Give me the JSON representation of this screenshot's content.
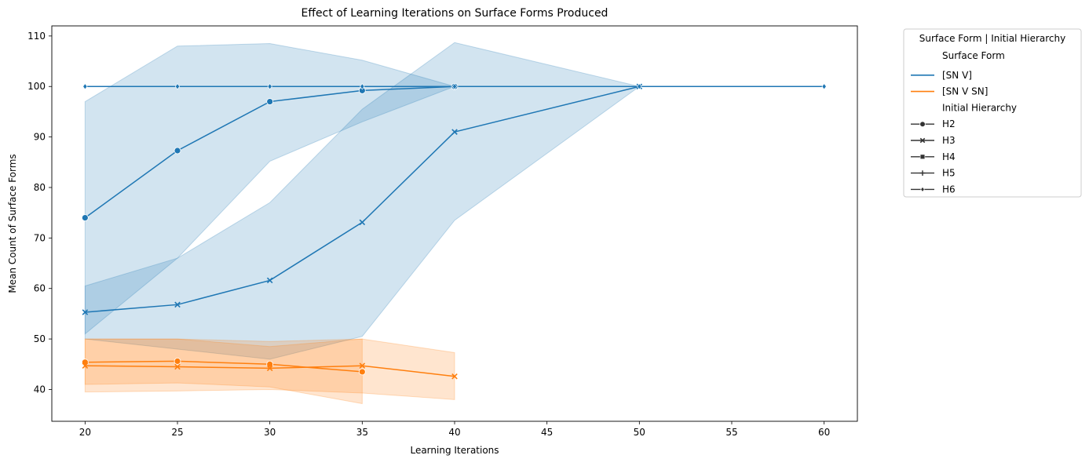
{
  "chart_data": {
    "type": "line",
    "title": "Effect of Learning Iterations on Surface Forms Produced",
    "xlabel": "Learning Iterations",
    "ylabel": "Mean Count of Surface Forms",
    "xlim": [
      18.2,
      61.8
    ],
    "ylim": [
      33.7,
      112.0
    ],
    "xticks": [
      20,
      25,
      30,
      35,
      40,
      45,
      50,
      55,
      60
    ],
    "yticks": [
      40,
      50,
      60,
      70,
      80,
      90,
      100,
      110
    ],
    "grid": false,
    "legend": {
      "placement": "outside-right",
      "title": "Surface Form | Initial Hierarchy",
      "hue_title": "Surface Form",
      "style_title": "Initial Hierarchy",
      "hues": [
        {
          "name": "[SN V]",
          "color": "#1f77b4"
        },
        {
          "name": "[SN V SN]",
          "color": "#ff7f0e"
        }
      ],
      "styles": [
        {
          "name": "H2",
          "marker": "circle"
        },
        {
          "name": "H3",
          "marker": "x"
        },
        {
          "name": "H4",
          "marker": "square"
        },
        {
          "name": "H5",
          "marker": "plus"
        },
        {
          "name": "H6",
          "marker": "diamond"
        }
      ]
    },
    "series": [
      {
        "name": "[SN V] | H2",
        "color": "#1f77b4",
        "marker": "circle",
        "x": [
          20,
          25,
          30,
          35,
          40
        ],
        "y": [
          74.0,
          87.3,
          97.0,
          99.2,
          100.0
        ],
        "ci_low": [
          51.0,
          66.0,
          85.2,
          93.0,
          100.0
        ],
        "ci_high": [
          97.0,
          108.0,
          108.5,
          105.2,
          100.0
        ]
      },
      {
        "name": "[SN V] | H3",
        "color": "#1f77b4",
        "marker": "x",
        "x": [
          20,
          25,
          30,
          35,
          40,
          50
        ],
        "y": [
          55.3,
          56.8,
          61.6,
          73.1,
          91.0,
          100.0
        ],
        "ci_low": [
          50.0,
          48.0,
          46.0,
          50.5,
          73.5,
          100.0
        ],
        "ci_high": [
          60.5,
          66.0,
          77.0,
          95.5,
          108.7,
          100.0
        ]
      },
      {
        "name": "[SN V] | H6",
        "color": "#1f77b4",
        "marker": "diamond",
        "x": [
          20,
          25,
          30,
          35,
          40,
          50,
          60
        ],
        "y": [
          100.0,
          100.0,
          100.0,
          100.0,
          100.0,
          100.0,
          100.0
        ],
        "ci_low": [
          100.0,
          100.0,
          100.0,
          100.0,
          100.0,
          100.0,
          100.0
        ],
        "ci_high": [
          100.0,
          100.0,
          100.0,
          100.0,
          100.0,
          100.0,
          100.0
        ]
      },
      {
        "name": "[SN V SN] | H2",
        "color": "#ff7f0e",
        "marker": "circle",
        "x": [
          20,
          25,
          30,
          35
        ],
        "y": [
          45.4,
          45.6,
          45.0,
          43.5
        ],
        "ci_low": [
          41.0,
          41.3,
          40.5,
          37.2
        ],
        "ci_high": [
          50.0,
          50.0,
          49.5,
          50.0
        ]
      },
      {
        "name": "[SN V SN] | H3",
        "color": "#ff7f0e",
        "marker": "x",
        "x": [
          20,
          25,
          30,
          35,
          40
        ],
        "y": [
          44.7,
          44.5,
          44.2,
          44.7,
          42.6
        ],
        "ci_low": [
          39.5,
          39.7,
          40.0,
          39.3,
          38.0
        ],
        "ci_high": [
          50.0,
          50.0,
          48.5,
          50.0,
          47.3
        ]
      }
    ]
  }
}
